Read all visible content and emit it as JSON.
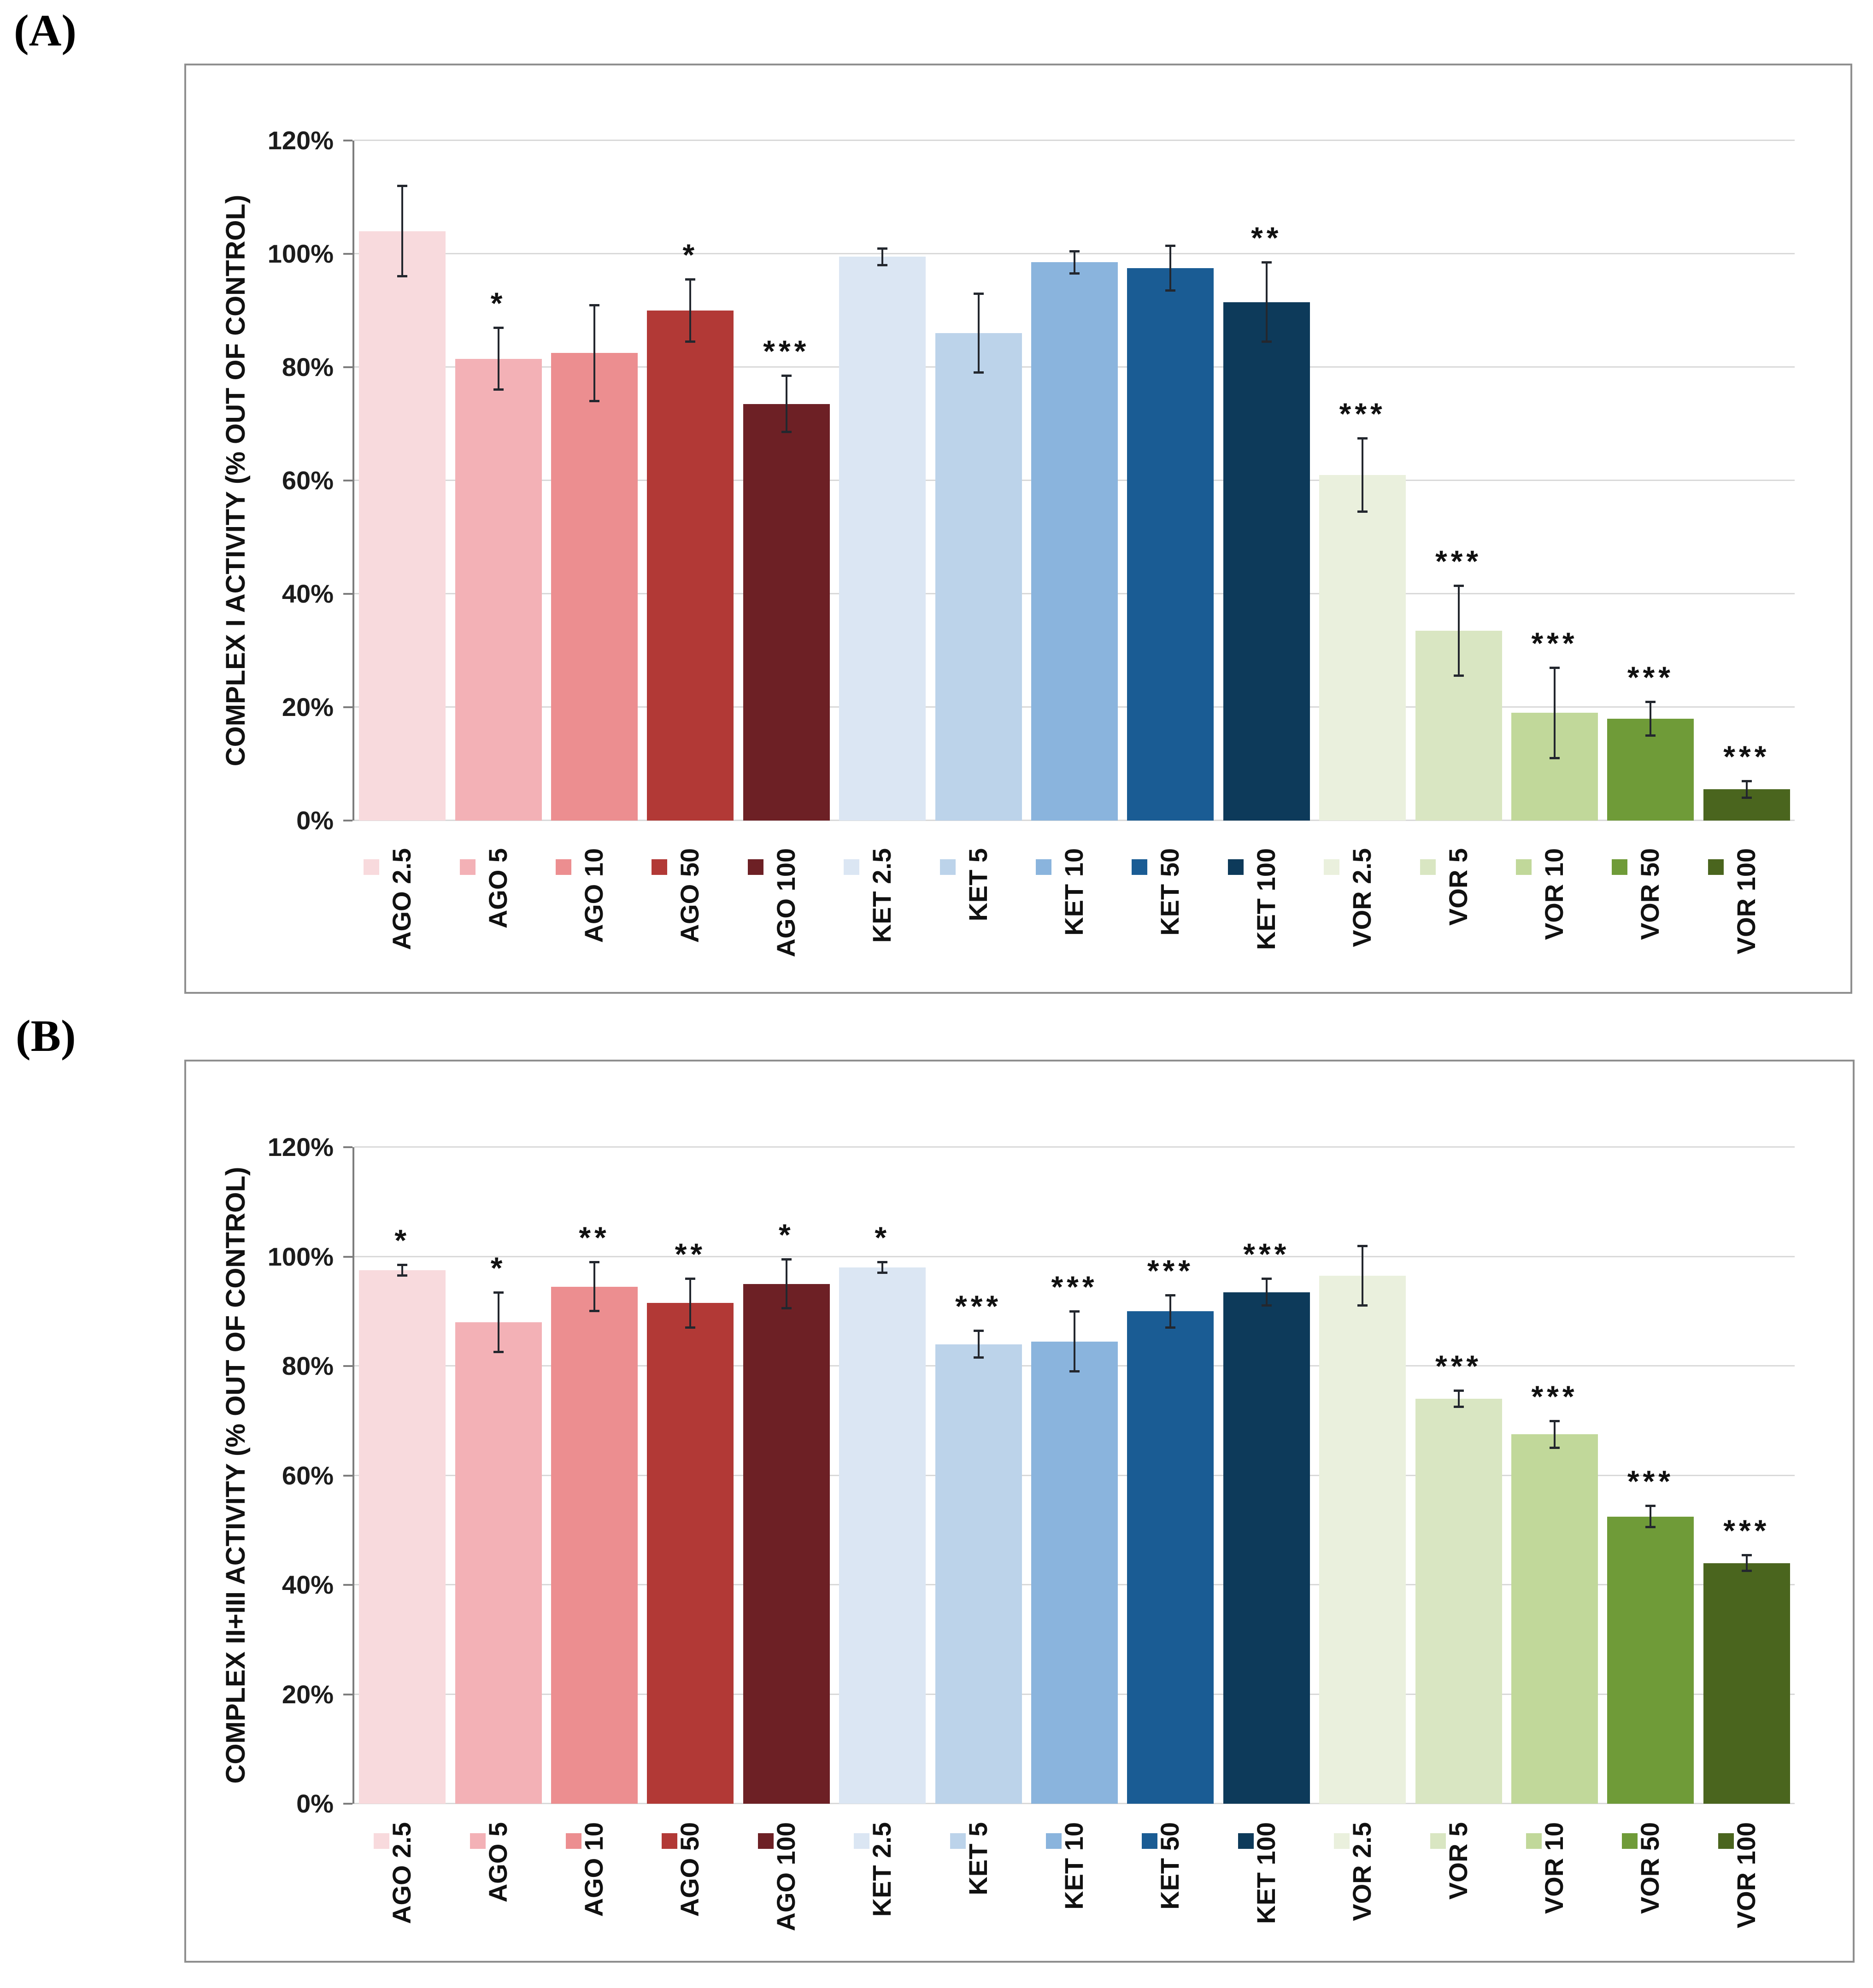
{
  "figure": {
    "panel_a_label": "(A)",
    "panel_b_label": "(B)"
  },
  "colors": {
    "background": "#ffffff",
    "box_border": "#8f8f8f",
    "grid": "#d9d9d9",
    "axis": "#7d7d7d",
    "error_bar": "#23272e",
    "text": "#1c1c1c"
  },
  "chart_data": [
    {
      "type": "bar",
      "panel_label": "(A)",
      "title": "",
      "xlabel": "",
      "ylabel": "COMPLEX I ACTIVITY (% OUT OF CONTROL)",
      "ylim": [
        0,
        120
      ],
      "ytick_step": 20,
      "ytick_labels": [
        "0%",
        "20%",
        "40%",
        "60%",
        "80%",
        "100%",
        "120%"
      ],
      "grid": true,
      "legend_position": "none",
      "legend_keys_on_x_labels": true,
      "categories": [
        "AGO 2.5",
        "AGO 5",
        "AGO 10",
        "AGO 50",
        "AGO 100",
        "KET 2.5",
        "KET 5",
        "KET 10",
        "KET 50",
        "KET 100",
        "VOR 2.5",
        "VOR 5",
        "VOR 10",
        "VOR 50",
        "VOR 100"
      ],
      "values": [
        104,
        81.5,
        82.5,
        90,
        73.5,
        99.5,
        86,
        98.5,
        97.5,
        91.5,
        61,
        33.5,
        19,
        18,
        5.5
      ],
      "errors": [
        8,
        5.5,
        8.5,
        5.5,
        5,
        1.5,
        7,
        2,
        4,
        7,
        6.5,
        8,
        8,
        3,
        1.5
      ],
      "significance": [
        "",
        "*",
        "",
        "*",
        "***",
        "",
        "",
        "",
        "",
        "**",
        "***",
        "***",
        "***",
        "***",
        "***"
      ],
      "bar_colors": [
        "#f8dadd",
        "#f3b1b6",
        "#ec8e90",
        "#b23936",
        "#6d2025",
        "#dbe6f3",
        "#bcd3ea",
        "#8ab4dd",
        "#1a5c94",
        "#0d3a5a",
        "#eaf0dd",
        "#d9e6c2",
        "#c1d89a",
        "#6f9b38",
        "#4a651e"
      ]
    },
    {
      "type": "bar",
      "panel_label": "(B)",
      "title": "",
      "xlabel": "",
      "ylabel": "COMPLEX II+III ACTIVITY (% OUT OF CONTROL)",
      "ylim": [
        0,
        120
      ],
      "ytick_step": 20,
      "ytick_labels": [
        "0%",
        "20%",
        "40%",
        "60%",
        "80%",
        "100%",
        "120%"
      ],
      "grid": true,
      "legend_position": "none",
      "legend_keys_on_x_labels": true,
      "categories": [
        "AGO 2.5",
        "AGO 5",
        "AGO 10",
        "AGO 50",
        "AGO 100",
        "KET 2.5",
        "KET 5",
        "KET 10",
        "KET 50",
        "KET 100",
        "VOR 2.5",
        "VOR 5",
        "VOR 10",
        "VOR 50",
        "VOR 100"
      ],
      "values": [
        97.5,
        88,
        94.5,
        91.5,
        95,
        98,
        84,
        84.5,
        90,
        93.5,
        96.5,
        74,
        67.5,
        52.5,
        44
      ],
      "errors": [
        1,
        5.5,
        4.5,
        4.5,
        4.5,
        1,
        2.5,
        5.5,
        3,
        2.5,
        5.5,
        1.5,
        2.5,
        2,
        1.5
      ],
      "significance": [
        "*",
        "*",
        "**",
        "**",
        "*",
        "*",
        "***",
        "***",
        "***",
        "***",
        "",
        "***",
        "***",
        "***",
        "***"
      ],
      "bar_colors": [
        "#f8dadd",
        "#f3b1b6",
        "#ec8e90",
        "#b23936",
        "#6d2025",
        "#dbe6f3",
        "#bcd3ea",
        "#8ab4dd",
        "#1a5c94",
        "#0d3a5a",
        "#eaf0dd",
        "#d9e6c2",
        "#c1d89a",
        "#6f9b38",
        "#4a651e"
      ]
    }
  ]
}
